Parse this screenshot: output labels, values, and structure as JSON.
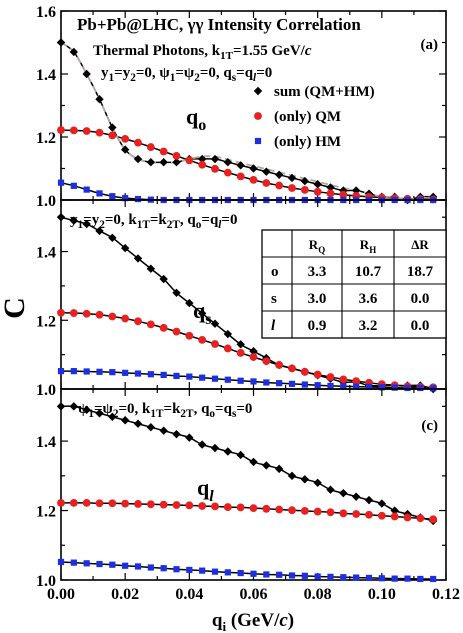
{
  "figure": {
    "ylabel": "C",
    "xlabel_main": "q",
    "xlabel_sub": "i",
    "xlabel_unit_pre": " (GeV/",
    "xlabel_unit_c": "c",
    "xlabel_unit_post": ")"
  },
  "colors": {
    "sum": "#000000",
    "qm": "#e8201f",
    "hm": "#1d2fe0",
    "thermal_dashed": "#b4a6a0",
    "axis": "#000000"
  },
  "chart_data": [
    {
      "type": "scatter",
      "panel_label": "(a)",
      "title": "Pb+Pb@LHC, γγ Intensity Correlation",
      "subtitle": "Thermal Photons, k1T=1.55 GeV/c",
      "condition": "y1=y2=0, ψ1=ψ2=0, qs=ql=0",
      "component_label": "qo",
      "xlim": [
        0,
        0.12
      ],
      "ylim": [
        1.0,
        1.6
      ],
      "x_ticks": [
        0,
        0.02,
        0.04,
        0.06,
        0.08,
        0.1,
        0.12
      ],
      "y_ticks": [
        1.0,
        1.2,
        1.4,
        1.6
      ],
      "legend": [
        "sum (QM+HM)",
        "(only) QM",
        "(only) HM"
      ],
      "series": [
        {
          "name": "sum (QM+HM)",
          "marker": "diamond",
          "x": [
            0.0,
            0.004,
            0.008,
            0.012,
            0.016,
            0.02,
            0.024,
            0.028,
            0.032,
            0.036,
            0.04,
            0.044,
            0.048,
            0.052,
            0.056,
            0.06,
            0.064,
            0.068,
            0.072,
            0.076,
            0.08,
            0.084,
            0.088,
            0.092,
            0.096,
            0.1,
            0.104,
            0.108,
            0.112,
            0.116
          ],
          "values": [
            1.5,
            1.47,
            1.4,
            1.32,
            1.23,
            1.16,
            1.13,
            1.12,
            1.12,
            1.12,
            1.13,
            1.13,
            1.13,
            1.12,
            1.11,
            1.1,
            1.09,
            1.08,
            1.07,
            1.06,
            1.05,
            1.04,
            1.03,
            1.03,
            1.02,
            1.01,
            1.01,
            1.0,
            1.01,
            1.01
          ]
        },
        {
          "name": "(only) QM",
          "marker": "circle",
          "x": [
            0.0,
            0.004,
            0.008,
            0.012,
            0.016,
            0.02,
            0.024,
            0.028,
            0.032,
            0.036,
            0.04,
            0.044,
            0.048,
            0.052,
            0.056,
            0.06,
            0.064,
            0.068,
            0.072,
            0.076,
            0.08,
            0.084,
            0.088,
            0.092,
            0.096,
            0.1,
            0.104,
            0.108,
            0.112,
            0.116
          ],
          "values": [
            1.222,
            1.221,
            1.219,
            1.214,
            1.205,
            1.194,
            1.182,
            1.168,
            1.154,
            1.14,
            1.126,
            1.112,
            1.099,
            1.087,
            1.075,
            1.064,
            1.054,
            1.046,
            1.038,
            1.032,
            1.026,
            1.021,
            1.017,
            1.013,
            1.01,
            1.008,
            1.006,
            1.004,
            1.003,
            1.002
          ]
        },
        {
          "name": "(only) HM",
          "marker": "square",
          "x": [
            0.0,
            0.004,
            0.008,
            0.012,
            0.016,
            0.02,
            0.024,
            0.028,
            0.032,
            0.036,
            0.04,
            0.044,
            0.048,
            0.052,
            0.056,
            0.06,
            0.064,
            0.068,
            0.072,
            0.076,
            0.08,
            0.084,
            0.088,
            0.092,
            0.096,
            0.1,
            0.104,
            0.108,
            0.112,
            0.116
          ],
          "values": [
            1.055,
            1.045,
            1.033,
            1.021,
            1.012,
            1.006,
            1.003,
            1.001,
            1.0,
            1.0,
            1.0,
            1.0,
            1.0,
            1.0,
            1.0,
            1.0,
            1.0,
            1.0,
            1.0,
            1.0,
            1.0,
            1.0,
            1.0,
            1.0,
            1.0,
            1.0,
            1.0,
            1.0,
            1.0,
            1.0
          ]
        }
      ]
    },
    {
      "type": "scatter",
      "panel_label": "(b)",
      "condition": "y1=y2=0, k1T=k2T, qo=ql=0",
      "component_label": "qs",
      "xlim": [
        0,
        0.12
      ],
      "ylim": [
        1.0,
        1.55
      ],
      "x_ticks": [
        0,
        0.02,
        0.04,
        0.06,
        0.08,
        0.1,
        0.12
      ],
      "y_ticks": [
        1.0,
        1.2,
        1.4
      ],
      "table": {
        "columns": [
          "",
          "RQ",
          "RH",
          "ΔR"
        ],
        "rows": [
          [
            "o",
            "3.3",
            "10.7",
            "18.7"
          ],
          [
            "s",
            "3.0",
            "3.6",
            "0.0"
          ],
          [
            "l",
            "0.9",
            "3.2",
            "0.0"
          ]
        ]
      },
      "series": [
        {
          "name": "sum (QM+HM)",
          "marker": "diamond",
          "x": [
            0.0,
            0.004,
            0.008,
            0.012,
            0.016,
            0.02,
            0.024,
            0.028,
            0.032,
            0.036,
            0.04,
            0.044,
            0.048,
            0.052,
            0.056,
            0.06,
            0.064,
            0.068,
            0.072,
            0.076,
            0.08,
            0.084,
            0.088,
            0.092,
            0.096,
            0.1,
            0.104,
            0.108,
            0.112,
            0.116
          ],
          "values": [
            1.5,
            1.49,
            1.48,
            1.46,
            1.44,
            1.41,
            1.38,
            1.35,
            1.32,
            1.28,
            1.25,
            1.22,
            1.19,
            1.16,
            1.13,
            1.11,
            1.09,
            1.07,
            1.06,
            1.05,
            1.04,
            1.03,
            1.02,
            1.02,
            1.01,
            1.01,
            1.01,
            1.01,
            1.01,
            1.0
          ]
        },
        {
          "name": "(only) QM",
          "marker": "circle",
          "x": [
            0.0,
            0.004,
            0.008,
            0.012,
            0.016,
            0.02,
            0.024,
            0.028,
            0.032,
            0.036,
            0.04,
            0.044,
            0.048,
            0.052,
            0.056,
            0.06,
            0.064,
            0.068,
            0.072,
            0.076,
            0.08,
            0.084,
            0.088,
            0.092,
            0.096,
            0.1,
            0.104,
            0.108,
            0.112,
            0.116
          ],
          "values": [
            1.222,
            1.221,
            1.219,
            1.216,
            1.211,
            1.205,
            1.197,
            1.188,
            1.178,
            1.167,
            1.155,
            1.143,
            1.131,
            1.118,
            1.105,
            1.093,
            1.081,
            1.07,
            1.06,
            1.05,
            1.042,
            1.035,
            1.028,
            1.023,
            1.018,
            1.014,
            1.011,
            1.008,
            1.006,
            1.005
          ]
        },
        {
          "name": "(only) HM",
          "marker": "square",
          "x": [
            0.0,
            0.004,
            0.008,
            0.012,
            0.016,
            0.02,
            0.024,
            0.028,
            0.032,
            0.036,
            0.04,
            0.044,
            0.048,
            0.052,
            0.056,
            0.06,
            0.064,
            0.068,
            0.072,
            0.076,
            0.08,
            0.084,
            0.088,
            0.092,
            0.096,
            0.1,
            0.104,
            0.108,
            0.112,
            0.116
          ],
          "values": [
            1.052,
            1.052,
            1.051,
            1.05,
            1.049,
            1.047,
            1.045,
            1.043,
            1.041,
            1.038,
            1.036,
            1.033,
            1.03,
            1.027,
            1.024,
            1.022,
            1.019,
            1.017,
            1.015,
            1.013,
            1.011,
            1.009,
            1.008,
            1.007,
            1.006,
            1.005,
            1.004,
            1.003,
            1.003,
            1.002
          ]
        }
      ]
    },
    {
      "type": "scatter",
      "panel_label": "(c)",
      "condition": "ψ1=ψ2=0, k1T=k2T, qo=qs=0",
      "component_label": "ql",
      "xlim": [
        0,
        0.12
      ],
      "ylim": [
        1.0,
        1.55
      ],
      "x_ticks": [
        0,
        0.02,
        0.04,
        0.06,
        0.08,
        0.1,
        0.12
      ],
      "y_ticks": [
        1.0,
        1.2,
        1.4
      ],
      "series": [
        {
          "name": "sum (QM+HM)",
          "marker": "diamond",
          "x": [
            0.0,
            0.004,
            0.008,
            0.012,
            0.016,
            0.02,
            0.024,
            0.028,
            0.032,
            0.036,
            0.04,
            0.044,
            0.048,
            0.052,
            0.056,
            0.06,
            0.064,
            0.068,
            0.072,
            0.076,
            0.08,
            0.084,
            0.088,
            0.092,
            0.096,
            0.1,
            0.104,
            0.108,
            0.112,
            0.116
          ],
          "values": [
            1.5,
            1.5,
            1.49,
            1.48,
            1.47,
            1.46,
            1.45,
            1.44,
            1.43,
            1.42,
            1.41,
            1.39,
            1.38,
            1.37,
            1.36,
            1.34,
            1.33,
            1.32,
            1.3,
            1.29,
            1.28,
            1.26,
            1.25,
            1.24,
            1.23,
            1.22,
            1.2,
            1.19,
            1.18,
            1.17
          ]
        },
        {
          "name": "(only) QM",
          "marker": "circle",
          "x": [
            0.0,
            0.004,
            0.008,
            0.012,
            0.016,
            0.02,
            0.024,
            0.028,
            0.032,
            0.036,
            0.04,
            0.044,
            0.048,
            0.052,
            0.056,
            0.06,
            0.064,
            0.068,
            0.072,
            0.076,
            0.08,
            0.084,
            0.088,
            0.092,
            0.096,
            0.1,
            0.104,
            0.108,
            0.112,
            0.116
          ],
          "values": [
            1.222,
            1.222,
            1.222,
            1.221,
            1.221,
            1.22,
            1.219,
            1.218,
            1.217,
            1.216,
            1.215,
            1.213,
            1.212,
            1.21,
            1.209,
            1.207,
            1.205,
            1.203,
            1.201,
            1.199,
            1.197,
            1.195,
            1.192,
            1.19,
            1.188,
            1.185,
            1.183,
            1.18,
            1.178,
            1.175
          ]
        },
        {
          "name": "(only) HM",
          "marker": "square",
          "x": [
            0.0,
            0.004,
            0.008,
            0.012,
            0.016,
            0.02,
            0.024,
            0.028,
            0.032,
            0.036,
            0.04,
            0.044,
            0.048,
            0.052,
            0.056,
            0.06,
            0.064,
            0.068,
            0.072,
            0.076,
            0.08,
            0.084,
            0.088,
            0.092,
            0.096,
            0.1,
            0.104,
            0.108,
            0.112,
            0.116
          ],
          "values": [
            1.052,
            1.05,
            1.048,
            1.046,
            1.044,
            1.041,
            1.039,
            1.036,
            1.034,
            1.031,
            1.029,
            1.027,
            1.024,
            1.022,
            1.02,
            1.018,
            1.016,
            1.015,
            1.013,
            1.012,
            1.01,
            1.009,
            1.008,
            1.007,
            1.006,
            1.005,
            1.004,
            1.004,
            1.003,
            1.003
          ]
        }
      ]
    }
  ]
}
